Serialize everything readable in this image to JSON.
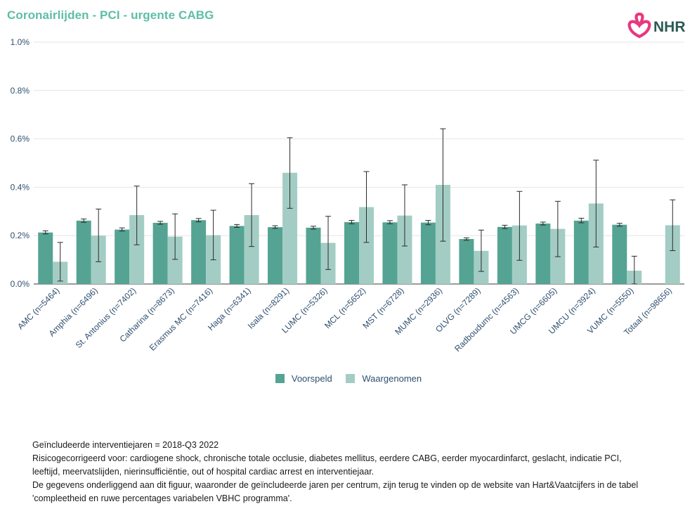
{
  "title": "Coronairlijden - PCI - urgente CABG",
  "logo_text": "NHR",
  "colors": {
    "title": "#5dbda6",
    "predicted": "#55a393",
    "observed": "#a3cdc4",
    "logo_pink": "#e8387f",
    "logo_text": "#2a5a55"
  },
  "legend": {
    "predicted": "Voorspeld",
    "observed": "Waargenomen"
  },
  "chart_data": {
    "type": "bar",
    "y_unit": "percent",
    "ylim": [
      0,
      1.0
    ],
    "y_ticks": [
      0.0,
      0.2,
      0.4,
      0.6,
      0.8,
      1.0
    ],
    "y_tick_labels": [
      "0.0%",
      "0.2%",
      "0.4%",
      "0.6%",
      "0.8%",
      "1.0%"
    ],
    "grid": "horizontal",
    "legend_position": "bottom-center",
    "categories": [
      "AMC (n=5464)",
      "Amphia (n=6496)",
      "St. Antonius (n=7402)",
      "Catharina (n=8673)",
      "Erasmus MC (n=7416)",
      "Haga (n=6341)",
      "Isala (n=8291)",
      "LUMC (n=5326)",
      "MCL (n=5652)",
      "MST (n=6728)",
      "MUMC (n=2936)",
      "OLVG (n=7289)",
      "Radboudumc (n=4563)",
      "UMCG (n=6605)",
      "UMCU (n=3924)",
      "VUMC (n=5550)",
      "Totaal (n=98656)"
    ],
    "series": [
      {
        "name": "Voorspeld",
        "values": [
          0.213,
          0.262,
          0.225,
          0.253,
          0.264,
          0.24,
          0.235,
          0.233,
          0.256,
          0.255,
          0.254,
          0.186,
          0.236,
          0.25,
          0.262,
          0.245,
          null
        ],
        "err_low": [
          0.207,
          0.255,
          0.219,
          0.247,
          0.257,
          0.234,
          0.23,
          0.227,
          0.249,
          0.249,
          0.245,
          0.181,
          0.229,
          0.244,
          0.253,
          0.239,
          null
        ],
        "err_high": [
          0.22,
          0.269,
          0.232,
          0.259,
          0.271,
          0.246,
          0.241,
          0.239,
          0.263,
          0.262,
          0.263,
          0.191,
          0.243,
          0.256,
          0.272,
          0.251,
          null
        ]
      },
      {
        "name": "Waargenomen",
        "values": [
          0.092,
          0.2,
          0.285,
          0.196,
          0.202,
          0.285,
          0.46,
          0.17,
          0.318,
          0.283,
          0.41,
          0.137,
          0.242,
          0.228,
          0.333,
          0.055,
          0.243
        ],
        "err_low": [
          0.012,
          0.092,
          0.162,
          0.102,
          0.1,
          0.155,
          0.313,
          0.06,
          0.172,
          0.157,
          0.177,
          0.052,
          0.098,
          0.113,
          0.153,
          0.0,
          0.138
        ],
        "err_high": [
          0.172,
          0.31,
          0.405,
          0.29,
          0.305,
          0.415,
          0.605,
          0.28,
          0.465,
          0.41,
          0.642,
          0.223,
          0.383,
          0.342,
          0.512,
          0.115,
          0.348
        ]
      }
    ]
  },
  "notes": [
    "Geïncludeerde interventiejaren = 2018-Q3 2022",
    "Risicogecorrigeerd voor: cardiogene shock, chronische totale occlusie, diabetes mellitus, eerdere CABG, eerder myocardinfarct, geslacht, indicatie PCI,",
    "leeftijd, meervatslijden, nierinsufficiëntie, out of hospital cardiac arrest en interventiejaar.",
    "De gegevens onderliggend aan dit figuur, waaronder de geïncludeerde jaren per centrum, zijn terug te vinden op de website van Hart&Vaatcijfers in de tabel",
    "'compleetheid en ruwe percentages variabelen VBHC programma'."
  ]
}
